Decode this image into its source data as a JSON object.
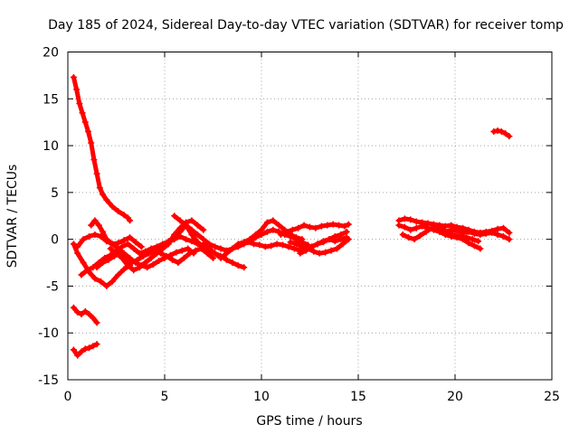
{
  "chart_data": {
    "type": "scatter",
    "title": "Day 185 of 2024, Sidereal Day-to-day VTEC variation (SDTVAR) for receiver tomp",
    "xlabel": "GPS time / hours",
    "ylabel": "SDTVAR / TECUs",
    "xlim": [
      0,
      25
    ],
    "ylim": [
      -15,
      20
    ],
    "xticks": [
      0,
      5,
      10,
      15,
      20,
      25
    ],
    "yticks": [
      -15,
      -10,
      -5,
      0,
      5,
      10,
      15,
      20
    ],
    "grid": true,
    "marker": "+",
    "color": "#ff0000",
    "series": [
      {
        "name": "s1",
        "x": [
          0.3,
          0.45,
          0.6,
          0.75,
          0.9,
          1.05,
          1.2,
          1.35,
          1.5,
          1.65,
          1.8,
          2.0,
          2.3,
          2.6,
          2.9,
          3.1,
          3.2
        ],
        "y": [
          17.3,
          16.0,
          14.5,
          13.5,
          12.5,
          11.5,
          10.3,
          8.5,
          7.0,
          5.5,
          4.8,
          4.2,
          3.5,
          3.0,
          2.6,
          2.3,
          2.0
        ]
      },
      {
        "name": "s2",
        "x": [
          0.3,
          0.5,
          0.7,
          0.9,
          1.1,
          1.3,
          1.5
        ],
        "y": [
          -7.3,
          -7.8,
          -8.0,
          -7.7,
          -8.0,
          -8.4,
          -8.9
        ]
      },
      {
        "name": "s3",
        "x": [
          0.3,
          0.5,
          0.7,
          0.9,
          1.1,
          1.3,
          1.5
        ],
        "y": [
          -11.8,
          -12.4,
          -12.0,
          -11.7,
          -11.6,
          -11.4,
          -11.2
        ]
      },
      {
        "name": "s4",
        "x": [
          0.3,
          0.5,
          0.8,
          1.1,
          1.4,
          1.7,
          2.0,
          2.3,
          2.6,
          2.9,
          3.2
        ],
        "y": [
          -0.5,
          -1.5,
          -2.5,
          -3.5,
          -4.2,
          -4.5,
          -5.0,
          -4.5,
          -3.8,
          -3.2,
          -2.8
        ]
      },
      {
        "name": "s5",
        "x": [
          0.7,
          1.0,
          1.3,
          1.6,
          1.9,
          2.2,
          2.5,
          2.8,
          3.1,
          3.4,
          3.7,
          4.0,
          4.3,
          4.6,
          4.9,
          5.2,
          5.5,
          5.8,
          6.1,
          6.4,
          6.7,
          7.0,
          7.3
        ],
        "y": [
          -3.8,
          -3.3,
          -3.0,
          -2.5,
          -2.0,
          -1.7,
          -1.2,
          -0.8,
          -0.5,
          -1.0,
          -1.5,
          -1.3,
          -1.0,
          -0.8,
          -0.5,
          -0.3,
          0.0,
          0.3,
          0.0,
          -0.2,
          -0.5,
          -0.8,
          -1.0
        ]
      },
      {
        "name": "s6",
        "x": [
          1.2,
          1.4,
          1.6,
          1.8,
          2.0,
          2.3,
          2.6,
          2.9,
          3.2,
          3.5,
          3.8,
          4.1,
          4.4,
          4.7,
          5.0,
          5.3,
          5.6,
          5.9,
          6.2,
          6.5
        ],
        "y": [
          1.5,
          2.0,
          1.5,
          0.8,
          0.0,
          -0.5,
          -1.0,
          -1.5,
          -2.0,
          -2.5,
          -2.8,
          -3.0,
          -2.7,
          -2.3,
          -2.0,
          -1.7,
          -1.4,
          -1.2,
          -1.0,
          -1.5
        ]
      },
      {
        "name": "s7",
        "x": [
          1.5,
          1.8,
          2.1,
          2.4,
          2.7,
          3.0,
          3.3,
          3.6,
          3.9,
          4.2,
          4.5,
          4.8,
          5.1,
          5.4,
          5.7,
          6.0,
          6.3,
          6.6,
          6.9,
          7.2,
          7.5
        ],
        "y": [
          -3.0,
          -2.5,
          -2.2,
          -1.8,
          -1.5,
          -2.0,
          -2.5,
          -2.2,
          -1.8,
          -1.5,
          -1.2,
          -1.5,
          -1.8,
          -2.2,
          -2.5,
          -2.0,
          -1.5,
          -1.2,
          -1.0,
          -1.5,
          -2.0
        ]
      },
      {
        "name": "s8",
        "x": [
          0.5,
          0.8,
          1.1,
          1.4,
          1.7,
          2.0,
          2.3,
          2.6,
          2.9,
          3.2,
          3.5,
          3.8
        ],
        "y": [
          -0.8,
          0.0,
          0.3,
          0.5,
          0.3,
          -0.2,
          -0.5,
          -0.4,
          -0.1,
          0.2,
          -0.3,
          -0.8
        ]
      },
      {
        "name": "s9",
        "x": [
          2.2,
          2.5,
          2.8,
          3.1,
          3.4,
          3.7,
          4.0,
          4.3,
          4.6,
          4.9,
          5.2,
          5.5,
          5.8,
          6.1,
          6.4,
          6.7,
          7.0
        ],
        "y": [
          -1.0,
          -1.5,
          -2.0,
          -2.8,
          -3.3,
          -3.0,
          -2.5,
          -2.0,
          -1.5,
          -1.0,
          -0.5,
          0.5,
          1.2,
          1.8,
          2.0,
          1.5,
          1.0
        ]
      },
      {
        "name": "s10",
        "x": [
          4.0,
          4.3,
          4.6,
          4.9,
          5.2,
          5.5,
          5.8,
          6.1,
          6.4,
          6.7,
          7.0,
          7.3,
          7.6,
          7.9,
          8.2,
          8.5,
          8.8,
          9.1
        ],
        "y": [
          -1.5,
          -1.2,
          -1.0,
          -0.6,
          -0.2,
          0.2,
          0.8,
          1.5,
          0.5,
          -0.3,
          -0.8,
          -1.2,
          -1.5,
          -1.8,
          -2.2,
          -2.5,
          -2.8,
          -3.0
        ]
      },
      {
        "name": "s11",
        "x": [
          5.5,
          5.8,
          6.1,
          6.4,
          6.7,
          7.0,
          7.3,
          7.6,
          7.9,
          8.2,
          8.5,
          8.8,
          9.1,
          9.4,
          9.7,
          10.0,
          10.3,
          10.6,
          10.9,
          11.2,
          11.5,
          11.8,
          12.1,
          12.4
        ],
        "y": [
          2.5,
          2.0,
          1.5,
          1.0,
          0.5,
          0.0,
          -0.5,
          -0.8,
          -1.0,
          -1.2,
          -1.0,
          -0.8,
          -0.5,
          -0.2,
          0.2,
          0.5,
          0.8,
          1.0,
          0.8,
          0.5,
          0.3,
          0.0,
          -0.3,
          -0.6
        ]
      },
      {
        "name": "s12",
        "x": [
          7.0,
          7.3,
          7.6,
          7.9,
          8.2,
          8.5,
          8.8,
          9.1,
          9.4,
          9.7,
          10.0,
          10.3,
          10.6,
          10.9,
          11.2,
          11.5,
          11.8,
          12.1
        ],
        "y": [
          -0.5,
          -1.0,
          -1.5,
          -2.0,
          -1.5,
          -1.0,
          -0.5,
          -0.3,
          0.0,
          0.5,
          1.0,
          1.8,
          2.0,
          1.5,
          1.0,
          0.5,
          0.2,
          0.0
        ]
      },
      {
        "name": "s13",
        "x": [
          9.0,
          9.3,
          9.6,
          9.9,
          10.2,
          10.5,
          10.8,
          11.1,
          11.4,
          11.7,
          12.0,
          12.3,
          12.6,
          12.9,
          13.2,
          13.5,
          13.8,
          14.1,
          14.4
        ],
        "y": [
          -0.5,
          -0.3,
          -0.5,
          -0.6,
          -0.8,
          -0.7,
          -0.5,
          -0.6,
          -0.8,
          -1.0,
          -1.2,
          -1.0,
          -0.8,
          -0.5,
          -0.3,
          0.0,
          0.3,
          0.5,
          0.8
        ]
      },
      {
        "name": "s14",
        "x": [
          11.0,
          11.3,
          11.6,
          11.9,
          12.2,
          12.5,
          12.8,
          13.1,
          13.4,
          13.7,
          14.0,
          14.3,
          14.5
        ],
        "y": [
          0.5,
          0.8,
          1.0,
          1.2,
          1.5,
          1.3,
          1.2,
          1.4,
          1.5,
          1.6,
          1.5,
          1.4,
          1.6
        ]
      },
      {
        "name": "s15",
        "x": [
          11.5,
          11.8,
          12.1,
          12.4,
          12.7,
          13.0,
          13.3,
          13.6,
          13.9,
          14.2,
          14.5
        ],
        "y": [
          -0.3,
          -0.5,
          -0.8,
          -1.0,
          -1.3,
          -1.5,
          -1.4,
          -1.2,
          -1.0,
          -0.5,
          0.0
        ]
      },
      {
        "name": "s16",
        "x": [
          12.0,
          12.3,
          12.6,
          12.9,
          13.2,
          13.5,
          13.8,
          14.1,
          14.4
        ],
        "y": [
          -1.5,
          -1.2,
          -0.8,
          -0.5,
          -0.2,
          0.0,
          -0.2,
          0.0,
          0.2
        ]
      },
      {
        "name": "s17",
        "x": [
          17.1,
          17.4,
          17.7,
          18.0,
          18.3,
          18.6,
          18.9,
          19.2,
          19.5,
          19.8,
          20.1,
          20.4,
          20.7,
          21.0,
          21.3,
          21.6,
          21.9,
          22.2,
          22.5,
          22.8
        ],
        "y": [
          2.0,
          2.2,
          2.1,
          1.9,
          1.8,
          1.7,
          1.6,
          1.5,
          1.4,
          1.5,
          1.3,
          1.2,
          1.0,
          0.8,
          0.7,
          0.8,
          0.9,
          1.1,
          1.2,
          0.7
        ]
      },
      {
        "name": "s18",
        "x": [
          17.1,
          17.4,
          17.7,
          18.0,
          18.3,
          18.6,
          18.9,
          19.2,
          19.5,
          19.8,
          20.1,
          20.4,
          20.7,
          21.0,
          21.3
        ],
        "y": [
          1.5,
          1.3,
          1.0,
          1.2,
          1.4,
          1.2,
          1.0,
          0.8,
          0.5,
          0.3,
          0.2,
          0.0,
          -0.4,
          -0.7,
          -1.0
        ]
      },
      {
        "name": "s19",
        "x": [
          17.3,
          17.6,
          17.9,
          18.2,
          18.5,
          18.8,
          19.1,
          19.4,
          19.7,
          20.0,
          20.3,
          20.6,
          20.9,
          21.2
        ],
        "y": [
          0.5,
          0.2,
          0.0,
          0.4,
          0.8,
          1.2,
          1.4,
          1.0,
          0.6,
          0.4,
          0.3,
          0.2,
          0.0,
          -0.2
        ]
      },
      {
        "name": "s20",
        "x": [
          19.5,
          19.8,
          20.1,
          20.4,
          20.7,
          21.0,
          21.3,
          21.6,
          21.9,
          22.2,
          22.5,
          22.8
        ],
        "y": [
          0.8,
          1.0,
          0.9,
          0.7,
          0.8,
          0.6,
          0.5,
          0.6,
          0.7,
          0.5,
          0.3,
          0.0
        ]
      },
      {
        "name": "s21",
        "x": [
          22.0,
          22.2,
          22.4,
          22.6,
          22.8
        ],
        "y": [
          11.5,
          11.6,
          11.5,
          11.3,
          11.0
        ]
      }
    ]
  }
}
